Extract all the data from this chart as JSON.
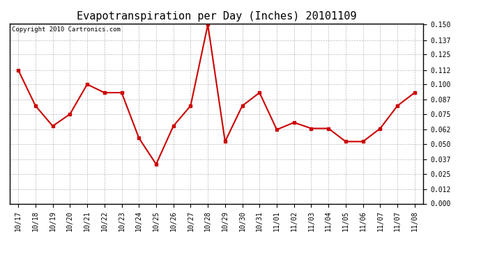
{
  "title": "Evapotranspiration per Day (Inches) 20101109",
  "copyright_text": "Copyright 2010 Cartronics.com",
  "x_labels": [
    "10/17",
    "10/18",
    "10/19",
    "10/20",
    "10/21",
    "10/22",
    "10/23",
    "10/24",
    "10/25",
    "10/26",
    "10/27",
    "10/28",
    "10/29",
    "10/30",
    "10/31",
    "11/01",
    "11/02",
    "11/03",
    "11/04",
    "11/05",
    "11/06",
    "11/07",
    "11/07",
    "11/08"
  ],
  "y_values": [
    0.112,
    0.082,
    0.065,
    0.075,
    0.1,
    0.093,
    0.093,
    0.055,
    0.033,
    0.065,
    0.082,
    0.15,
    0.052,
    0.082,
    0.093,
    0.062,
    0.068,
    0.063,
    0.063,
    0.052,
    0.052,
    0.063,
    0.082,
    0.093
  ],
  "line_color": "#cc0000",
  "marker": "s",
  "marker_size": 3,
  "background_color": "#ffffff",
  "plot_bg_color": "#ffffff",
  "grid_color": "#bbbbbb",
  "ylim": [
    0.0,
    0.15
  ],
  "yticks": [
    0.0,
    0.012,
    0.025,
    0.037,
    0.05,
    0.062,
    0.075,
    0.087,
    0.1,
    0.112,
    0.125,
    0.137,
    0.15
  ],
  "title_fontsize": 11,
  "tick_fontsize": 7,
  "copyright_fontsize": 6.5
}
